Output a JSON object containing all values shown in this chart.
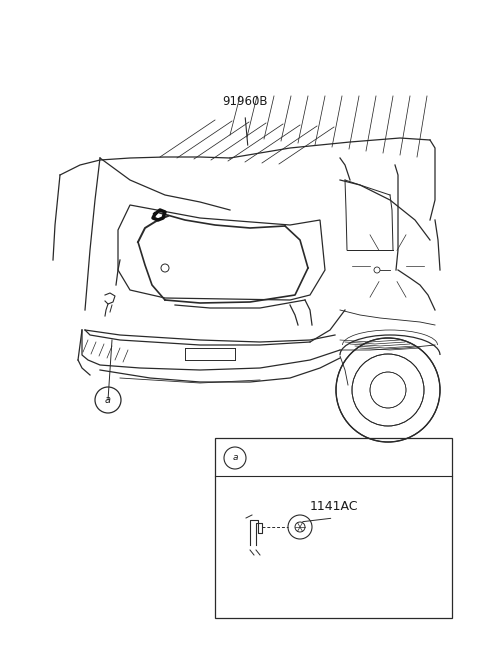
{
  "background_color": "#ffffff",
  "line_color": "#2a2a2a",
  "text_color": "#1a1a1a",
  "main_label": "91960B",
  "circle_a_label": "a",
  "inset_label": "1141AC",
  "fig_width": 4.8,
  "fig_height": 6.56,
  "dpi": 100
}
